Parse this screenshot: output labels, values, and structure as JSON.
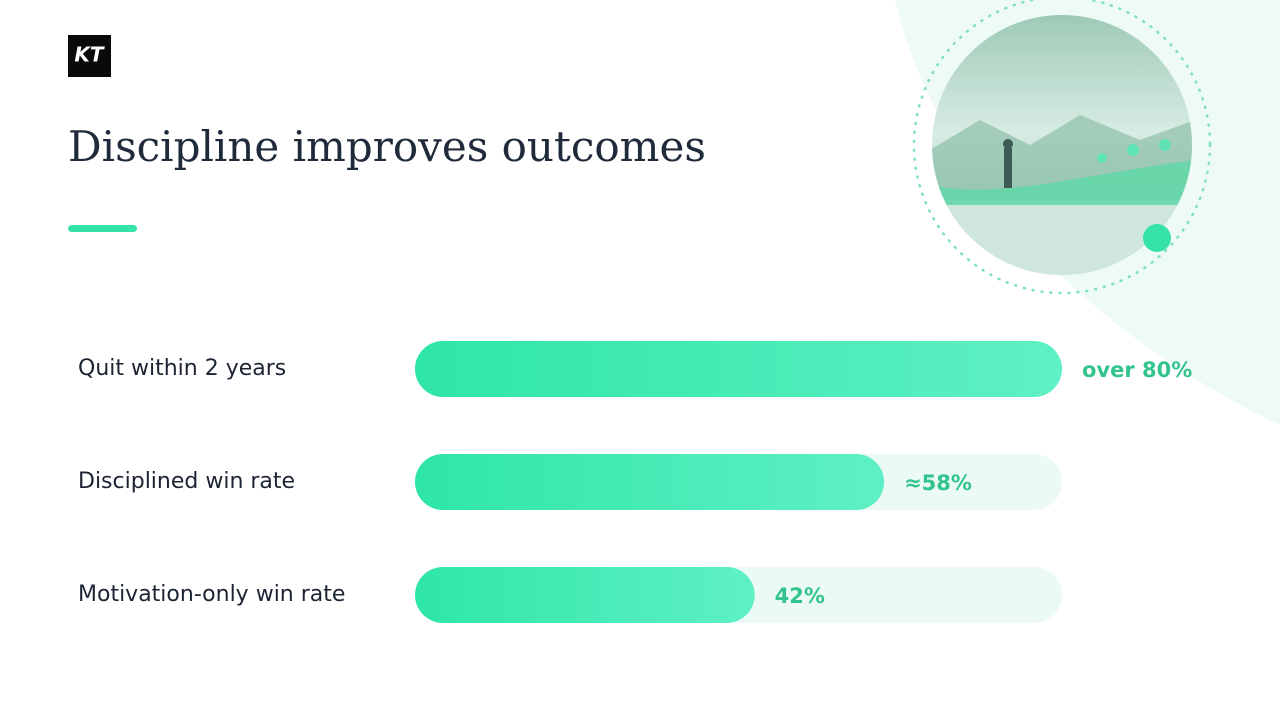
{
  "logo": "KT",
  "chart_data": {
    "type": "bar",
    "orientation": "horizontal",
    "title": "Discipline improves outcomes",
    "categories": [
      "Quit within 2 years",
      "Disciplined win rate",
      "Motivation-only win rate"
    ],
    "values": [
      80,
      58,
      42
    ],
    "value_labels": [
      "over 80%",
      "≈58%",
      "42%"
    ],
    "xlim": [
      0,
      80
    ],
    "color": "#2ee6a6"
  }
}
